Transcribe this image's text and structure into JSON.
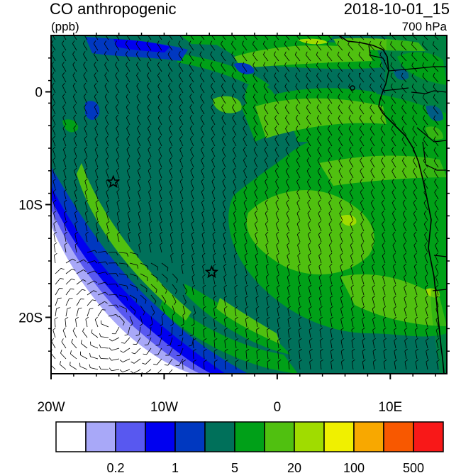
{
  "header": {
    "title": "CO anthropogenic",
    "units": "(ppb)",
    "datetime": "2018-10-01_15",
    "level": "700 hPa"
  },
  "chart_data": {
    "type": "heatmap",
    "title": "CO anthropogenic",
    "units": "(ppb)",
    "datetime": "2018-10-01_15",
    "level": "700 hPa",
    "x_axis": {
      "range_deg": [
        -20,
        15
      ],
      "ticks": [
        {
          "value": -20,
          "label": "20W"
        },
        {
          "value": -10,
          "label": "10W"
        },
        {
          "value": 0,
          "label": "0"
        },
        {
          "value": 10,
          "label": "10E"
        }
      ]
    },
    "y_axis": {
      "range_deg": [
        -25,
        5
      ],
      "ticks": [
        {
          "value": 0,
          "label": "0"
        },
        {
          "value": -10,
          "label": "10S"
        },
        {
          "value": -20,
          "label": "20S"
        }
      ]
    },
    "colorbar": {
      "colors": [
        "#ffffff",
        "#a8a8f8",
        "#5858f0",
        "#0000f0",
        "#0038c0",
        "#00705a",
        "#00a018",
        "#50c010",
        "#a0dc00",
        "#f0f000",
        "#f8a800",
        "#f85800",
        "#f81818"
      ],
      "labels": [
        "0.2",
        "1",
        "5",
        "20",
        "100",
        "500"
      ],
      "label_after_box": [
        1,
        3,
        5,
        7,
        9,
        11
      ]
    },
    "markers": [
      {
        "symbol": "star",
        "lon": -14.5,
        "lat": -8.0
      },
      {
        "symbol": "star",
        "lon": -5.8,
        "lat": -16.0
      }
    ],
    "overlays": [
      "wind-barbs",
      "coastline"
    ]
  }
}
